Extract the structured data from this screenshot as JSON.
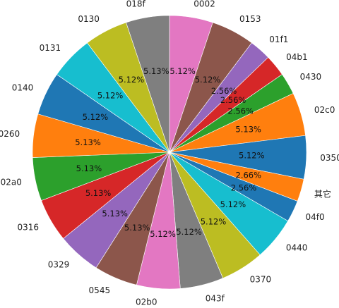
{
  "chart_data": {
    "type": "pie",
    "title": "",
    "start_angle_deg": 90,
    "direction": "clockwise",
    "legend": "none",
    "slices": [
      {
        "label": "0002",
        "value": 5.12,
        "value_label": "5.12%",
        "color": "#e377c2"
      },
      {
        "label": "0153",
        "value": 5.12,
        "value_label": "5.12%",
        "color": "#8c564b"
      },
      {
        "label": "01f1",
        "value": 2.56,
        "value_label": "2.56%",
        "color": "#9467bd"
      },
      {
        "label": "04b1",
        "value": 2.56,
        "value_label": "2.56%",
        "color": "#d62728"
      },
      {
        "label": "0430",
        "value": 2.56,
        "value_label": "2.56%",
        "color": "#2ca02c"
      },
      {
        "label": "02c0",
        "value": 5.13,
        "value_label": "5.13%",
        "color": "#ff7f0e"
      },
      {
        "label": "0350",
        "value": 5.12,
        "value_label": "5.12%",
        "color": "#1f77b4"
      },
      {
        "label": "其它",
        "value": 2.66,
        "value_label": "2.66%",
        "color": "#ff7f0e"
      },
      {
        "label": "04f0",
        "value": 2.56,
        "value_label": "2.56%",
        "color": "#1f77b4"
      },
      {
        "label": "0440",
        "value": 5.12,
        "value_label": "5.12%",
        "color": "#17becf"
      },
      {
        "label": "0370",
        "value": 5.12,
        "value_label": "5.12%",
        "color": "#bcbd22"
      },
      {
        "label": "043f",
        "value": 5.12,
        "value_label": "5.12%",
        "color": "#7f7f7f"
      },
      {
        "label": "02b0",
        "value": 5.12,
        "value_label": "5.12%",
        "color": "#e377c2"
      },
      {
        "label": "0545",
        "value": 5.13,
        "value_label": "5.13%",
        "color": "#8c564b"
      },
      {
        "label": "0329",
        "value": 5.13,
        "value_label": "5.13%",
        "color": "#9467bd"
      },
      {
        "label": "0316",
        "value": 5.13,
        "value_label": "5.13%",
        "color": "#d62728"
      },
      {
        "label": "02a0",
        "value": 5.13,
        "value_label": "5.13%",
        "color": "#2ca02c"
      },
      {
        "label": "0260",
        "value": 5.13,
        "value_label": "5.13%",
        "color": "#ff7f0e"
      },
      {
        "label": "0140",
        "value": 5.12,
        "value_label": "5.12%",
        "color": "#1f77b4"
      },
      {
        "label": "0131",
        "value": 5.12,
        "value_label": "5.12%",
        "color": "#17becf"
      },
      {
        "label": "0130",
        "value": 5.12,
        "value_label": "5.12%",
        "color": "#bcbd22"
      },
      {
        "label": "018f",
        "value": 5.13,
        "value_label": "5.13%",
        "color": "#7f7f7f"
      }
    ]
  }
}
